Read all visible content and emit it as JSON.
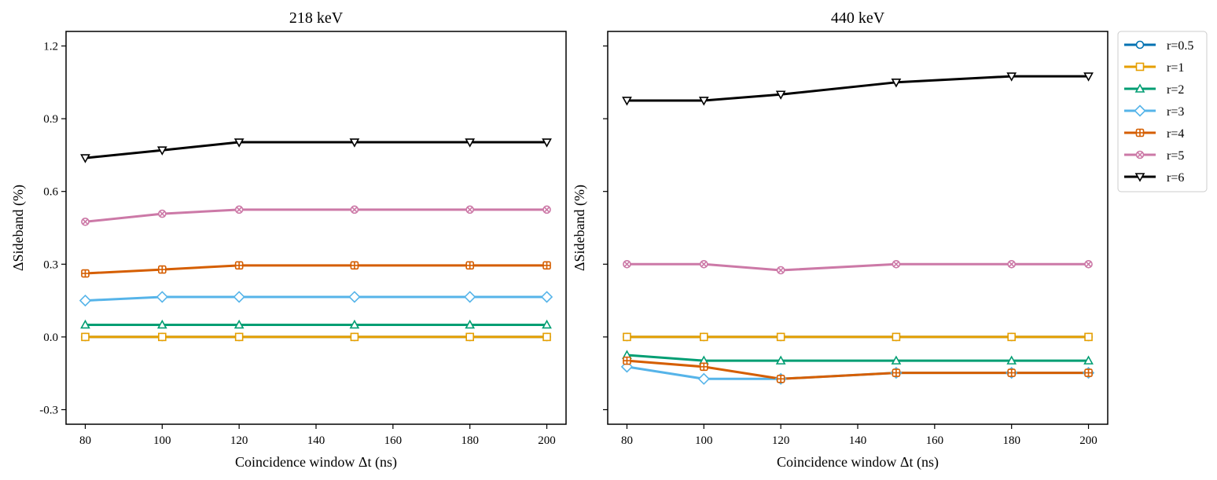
{
  "chart_data": [
    {
      "type": "line",
      "title": "218 keV",
      "xlabel": "Coincidence window Δt (ns)",
      "ylabel": "ΔSideband (%)",
      "xlim": [
        75,
        205
      ],
      "ylim": [
        -0.36,
        1.26
      ],
      "xticks": [
        80,
        100,
        120,
        140,
        160,
        180,
        200
      ],
      "xtick_labels": [
        "80",
        "100",
        "120",
        "140",
        "160",
        "180",
        "200"
      ],
      "yticks": [
        -0.3,
        0.0,
        0.3,
        0.6,
        0.9,
        1.2
      ],
      "ytick_labels": [
        "-0.3",
        "0.0",
        "0.3",
        "0.6",
        "0.9",
        "1.2"
      ],
      "x": [
        80,
        100,
        120,
        150,
        180,
        200
      ],
      "series": [
        {
          "name": "r=0.5",
          "color": "#0072B2",
          "marker": "circle",
          "values": [
            0.0,
            0.0,
            0.0,
            0.0,
            0.0,
            0.0
          ]
        },
        {
          "name": "r=1",
          "color": "#E69F00",
          "marker": "square",
          "values": [
            0.0,
            0.0,
            0.0,
            0.0,
            0.0,
            0.0
          ]
        },
        {
          "name": "r=2",
          "color": "#009E73",
          "marker": "triangle-up",
          "values": [
            0.05,
            0.05,
            0.05,
            0.05,
            0.05,
            0.05
          ]
        },
        {
          "name": "r=3",
          "color": "#56B4E9",
          "marker": "diamond",
          "values": [
            0.15,
            0.165,
            0.165,
            0.165,
            0.165,
            0.165
          ]
        },
        {
          "name": "r=4",
          "color": "#D55E00",
          "marker": "plus-square",
          "values": [
            0.262,
            0.278,
            0.295,
            0.295,
            0.295,
            0.295
          ]
        },
        {
          "name": "r=5",
          "color": "#CC79A7",
          "marker": "x-circle",
          "values": [
            0.475,
            0.508,
            0.525,
            0.525,
            0.525,
            0.525
          ]
        },
        {
          "name": "r=6",
          "color": "#000000",
          "marker": "triangle-down",
          "values": [
            0.738,
            0.77,
            0.803,
            0.803,
            0.803,
            0.803
          ]
        }
      ]
    },
    {
      "type": "line",
      "title": "440 keV",
      "xlabel": "Coincidence window Δt (ns)",
      "ylabel": "ΔSideband (%)",
      "xlim": [
        75,
        205
      ],
      "ylim": [
        -0.36,
        1.26
      ],
      "xticks": [
        80,
        100,
        120,
        140,
        160,
        180,
        200
      ],
      "xtick_labels": [
        "80",
        "100",
        "120",
        "140",
        "160",
        "180",
        "200"
      ],
      "yticks": [
        -0.3,
        0.0,
        0.3,
        0.6,
        0.9,
        1.2
      ],
      "ytick_labels": [],
      "x": [
        80,
        100,
        120,
        150,
        180,
        200
      ],
      "series": [
        {
          "name": "r=0.5",
          "color": "#0072B2",
          "marker": "circle",
          "values": [
            0.0,
            0.0,
            0.0,
            0.0,
            0.0,
            0.0
          ]
        },
        {
          "name": "r=1",
          "color": "#E69F00",
          "marker": "square",
          "values": [
            0.0,
            0.0,
            0.0,
            0.0,
            0.0,
            0.0
          ]
        },
        {
          "name": "r=2",
          "color": "#009E73",
          "marker": "triangle-up",
          "values": [
            -0.075,
            -0.098,
            -0.098,
            -0.098,
            -0.098,
            -0.098
          ]
        },
        {
          "name": "r=3",
          "color": "#56B4E9",
          "marker": "diamond",
          "values": [
            -0.123,
            -0.173,
            -0.173,
            -0.148,
            -0.148,
            -0.148
          ]
        },
        {
          "name": "r=4",
          "color": "#D55E00",
          "marker": "plus-square",
          "values": [
            -0.098,
            -0.123,
            -0.173,
            -0.148,
            -0.148,
            -0.148
          ]
        },
        {
          "name": "r=5",
          "color": "#CC79A7",
          "marker": "x-circle",
          "values": [
            0.3,
            0.3,
            0.275,
            0.3,
            0.3,
            0.3
          ]
        },
        {
          "name": "r=6",
          "color": "#000000",
          "marker": "triangle-down",
          "values": [
            0.975,
            0.975,
            1.0,
            1.05,
            1.075,
            1.075
          ]
        }
      ]
    }
  ],
  "legend": {
    "placement": "outside-right",
    "entries": [
      "r=0.5",
      "r=1",
      "r=2",
      "r=3",
      "r=4",
      "r=5",
      "r=6"
    ]
  }
}
